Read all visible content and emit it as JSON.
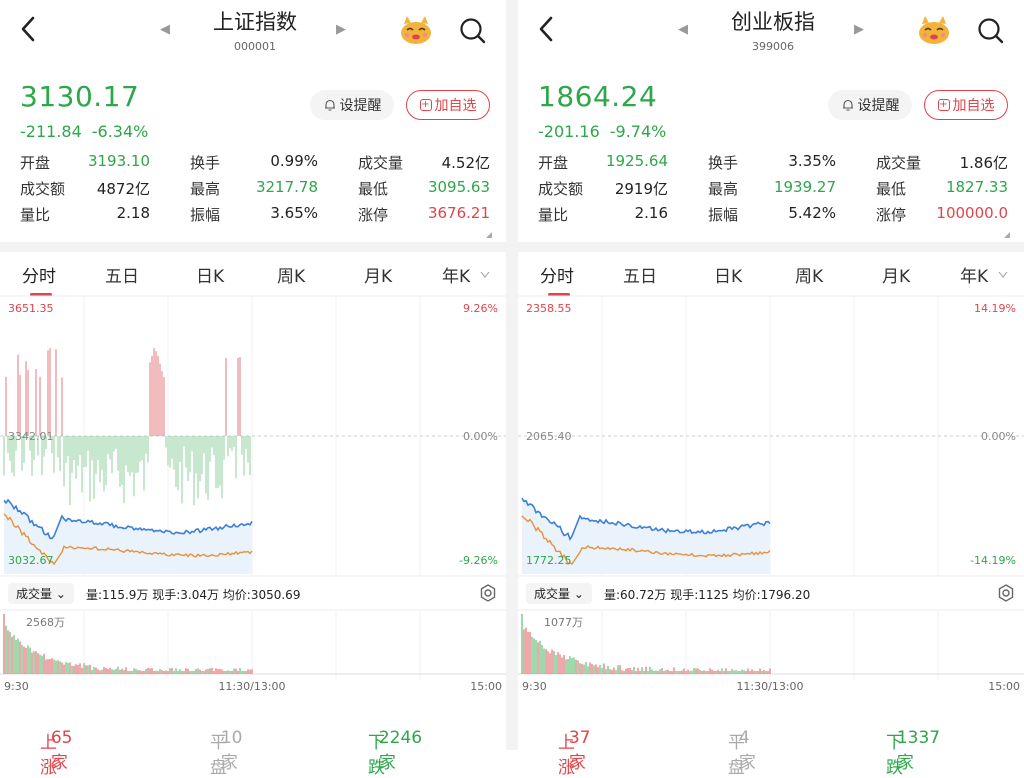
{
  "panels": [
    {
      "title": "上证指数",
      "code": "000001",
      "price": "3130.17",
      "change": "-211.84",
      "change_pct": "-6.34%",
      "alert_label": "设提醒",
      "add_label": "加自选",
      "stats": [
        [
          {
            "label": "开盘",
            "value": "3193.10",
            "color": "green"
          },
          {
            "label": "换手",
            "value": "0.99%",
            "color": "dark"
          },
          {
            "label": "成交量",
            "value": "4.52亿",
            "color": "dark"
          }
        ],
        [
          {
            "label": "成交额",
            "value": "4872亿",
            "color": "dark"
          },
          {
            "label": "最高",
            "value": "3217.78",
            "color": "green"
          },
          {
            "label": "最低",
            "value": "3095.63",
            "color": "green"
          }
        ],
        [
          {
            "label": "量比",
            "value": "2.18",
            "color": "dark"
          },
          {
            "label": "振幅",
            "value": "3.65%",
            "color": "dark"
          },
          {
            "label": "涨停",
            "value": "3676.21",
            "color": "red"
          }
        ]
      ],
      "tabs": [
        "分时",
        "五日",
        "日K",
        "周K",
        "月K",
        "年K"
      ],
      "chart_labels": {
        "top_left": "3651.35",
        "top_right": "9.26%",
        "mid_left": "3342.01",
        "mid_right": "0.00%",
        "bot_left": "3032.67",
        "bot_right": "-9.26%"
      },
      "volume_bar": {
        "pill": "成交量",
        "text": "量:115.9万  现手:3.04万  均价:3050.69",
        "max_label": "2568万"
      },
      "time_axis": [
        "9:30",
        "11:30/13:00",
        "15:00"
      ],
      "footer": {
        "up_label": "上涨",
        "up_count": "65家",
        "flat_label": "平盘",
        "flat_count": "10家",
        "down_label": "下跌",
        "down_count": "2246家"
      }
    },
    {
      "title": "创业板指",
      "code": "399006",
      "price": "1864.24",
      "change": "-201.16",
      "change_pct": "-9.74%",
      "alert_label": "设提醒",
      "add_label": "加自选",
      "stats": [
        [
          {
            "label": "开盘",
            "value": "1925.64",
            "color": "green"
          },
          {
            "label": "换手",
            "value": "3.35%",
            "color": "dark"
          },
          {
            "label": "成交量",
            "value": "1.86亿",
            "color": "dark"
          }
        ],
        [
          {
            "label": "成交额",
            "value": "2919亿",
            "color": "dark"
          },
          {
            "label": "最高",
            "value": "1939.27",
            "color": "green"
          },
          {
            "label": "最低",
            "value": "1827.33",
            "color": "green"
          }
        ],
        [
          {
            "label": "量比",
            "value": "2.16",
            "color": "dark"
          },
          {
            "label": "振幅",
            "value": "5.42%",
            "color": "dark"
          },
          {
            "label": "涨停",
            "value": "100000.0",
            "color": "red"
          }
        ]
      ],
      "tabs": [
        "分时",
        "五日",
        "日K",
        "周K",
        "月K",
        "年K"
      ],
      "chart_labels": {
        "top_left": "2358.55",
        "top_right": "14.19%",
        "mid_left": "2065.40",
        "mid_right": "0.00%",
        "bot_left": "1772.25",
        "bot_right": "-14.19%"
      },
      "volume_bar": {
        "pill": "成交量",
        "text": "量:60.72万  现手:1125  均价:1796.20",
        "max_label": "1077万"
      },
      "time_axis": [
        "9:30",
        "11:30/13:00",
        "15:00"
      ],
      "footer": {
        "up_label": "上涨",
        "up_count": "37家",
        "flat_label": "平盘",
        "flat_count": "4家",
        "down_label": "下跌",
        "down_count": "1337家"
      }
    }
  ],
  "colors": {
    "red": "#e0454b",
    "green": "#2ea64a",
    "blue": "#3d7fd6",
    "orange": "#e8913a"
  }
}
